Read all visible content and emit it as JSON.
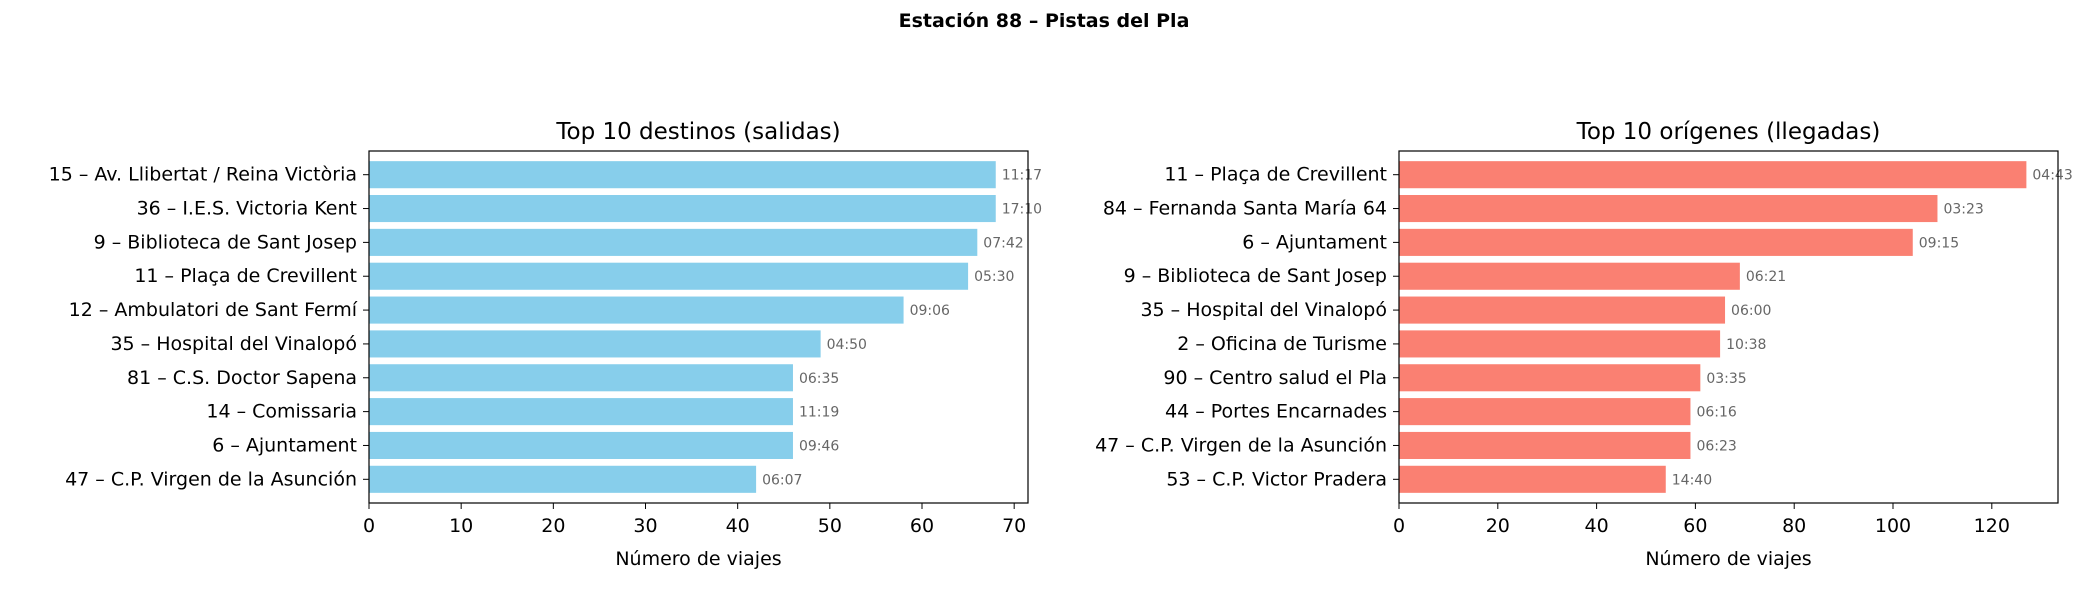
{
  "suptitle": "Estación 88 – Pistas del Pla",
  "chart_data": [
    {
      "type": "bar",
      "orientation": "horizontal",
      "title": "Top 10 destinos (salidas)",
      "xlabel": "Número de viajes",
      "ylabel": "",
      "xlim": [
        0,
        71.5
      ],
      "xticks": [
        0,
        10,
        20,
        30,
        40,
        50,
        60,
        70
      ],
      "color": "#87ceeb",
      "categories": [
        "15 – Av. Llibertat / Reina Victòria",
        "36 – I.E.S. Victoria Kent",
        "9 – Biblioteca de Sant Josep",
        "11 – Plaça de Crevillent",
        "12 – Ambulatori de Sant Fermí",
        "35 – Hospital del Vinalopó",
        "81 – C.S. Doctor Sapena",
        "14 – Comissaria",
        "6 – Ajuntament",
        "47 – C.P. Virgen de la Asunción"
      ],
      "values": [
        68,
        68,
        66,
        65,
        58,
        49,
        46,
        46,
        46,
        42
      ],
      "bar_labels": [
        "11:17",
        "17:10",
        "07:42",
        "05:30",
        "09:06",
        "04:50",
        "06:35",
        "11:19",
        "09:46",
        "06:07"
      ]
    },
    {
      "type": "bar",
      "orientation": "horizontal",
      "title": "Top 10 orígenes (llegadas)",
      "xlabel": "Número de viajes",
      "ylabel": "",
      "xlim": [
        0,
        133.4
      ],
      "xticks": [
        0,
        20,
        40,
        60,
        80,
        100,
        120
      ],
      "color": "#fa8072",
      "categories": [
        "11 – Plaça de Crevillent",
        "84 – Fernanda Santa María 64",
        "6 – Ajuntament",
        "9 – Biblioteca de Sant Josep",
        "35 – Hospital del Vinalopó",
        "2 – Oficina de Turisme",
        "90 – Centro salud el Pla",
        "44 – Portes Encarnades",
        "47 – C.P. Virgen de la Asunción",
        "53 – C.P. Victor Pradera"
      ],
      "values": [
        127,
        109,
        104,
        69,
        66,
        65,
        61,
        59,
        59,
        54
      ],
      "bar_labels": [
        "04:43",
        "03:23",
        "09:15",
        "06:21",
        "06:00",
        "10:38",
        "03:35",
        "06:16",
        "06:23",
        "14:40"
      ]
    }
  ]
}
